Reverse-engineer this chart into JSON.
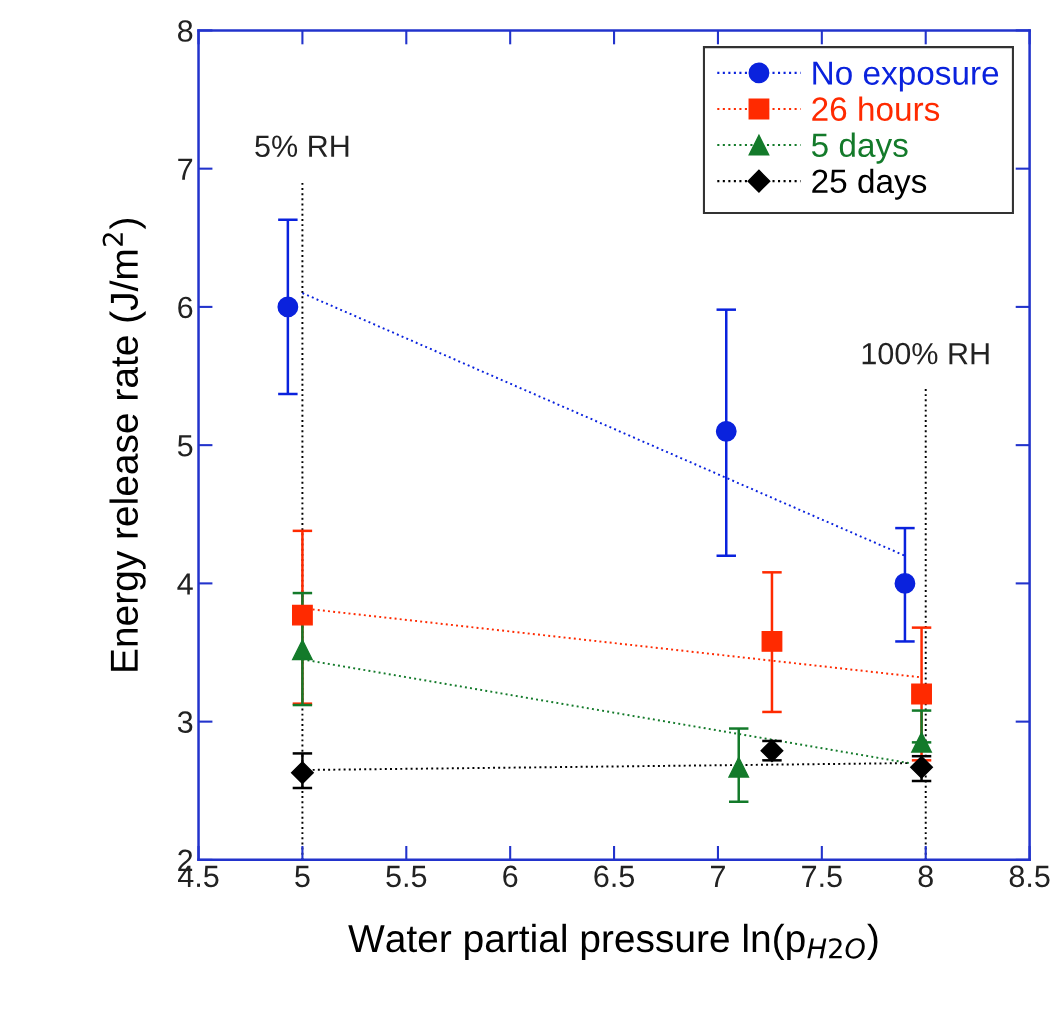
{
  "chart_data": {
    "type": "scatter",
    "xlabel": "Water partial pressure ln(p$_{H2O}$)",
    "ylabel": "Energy release rate (J/m$^{2}$)",
    "xlim": [
      4.5,
      8.5
    ],
    "xticks": [
      4.5,
      5,
      5.5,
      6,
      6.5,
      7,
      7.5,
      8,
      8.5
    ],
    "ylim": [
      2,
      8
    ],
    "yticks": [
      2,
      3,
      4,
      5,
      6,
      7,
      8
    ],
    "grid": false,
    "legend": "top right",
    "series": [
      {
        "name": "No exposure",
        "color": "#0a22dd",
        "marker": "circle",
        "x": [
          4.93,
          7.04,
          7.9
        ],
        "values": [
          6.0,
          5.1,
          4.0
        ],
        "errors": [
          [
            5.37,
            6.63
          ],
          [
            4.2,
            5.98
          ],
          [
            3.58,
            4.4
          ]
        ]
      },
      {
        "name": "26 hours",
        "color": "#ff2a00",
        "marker": "square",
        "x": [
          5.0,
          7.26,
          7.98
        ],
        "values": [
          3.77,
          3.58,
          3.2
        ],
        "errors": [
          [
            3.13,
            4.38
          ],
          [
            3.07,
            4.08
          ],
          [
            2.72,
            3.68
          ]
        ]
      },
      {
        "name": "5 days",
        "color": "#137a2a",
        "marker": "triangle",
        "x": [
          5.0,
          7.1,
          7.98
        ],
        "values": [
          3.52,
          2.67,
          2.85
        ],
        "errors": [
          [
            3.12,
            3.93
          ],
          [
            2.42,
            2.95
          ],
          [
            2.85,
            3.08
          ]
        ]
      },
      {
        "name": "25 days",
        "color": "#000000",
        "marker": "diamond",
        "x": [
          5.0,
          7.26,
          7.98
        ],
        "values": [
          2.63,
          2.79,
          2.67
        ],
        "errors": [
          [
            2.52,
            2.77
          ],
          [
            2.72,
            2.86
          ],
          [
            2.57,
            2.75
          ]
        ]
      },
      {
        "type": "line",
        "color": "#0a22dd",
        "line_style": "dotted",
        "marker": "none",
        "x": [
          5.0,
          7.9
        ],
        "values": [
          6.1,
          4.2
        ]
      },
      {
        "type": "line",
        "color": "#ff2a00",
        "line_style": "dotted",
        "marker": "none",
        "x": [
          5.0,
          7.98
        ],
        "values": [
          3.82,
          3.32
        ]
      },
      {
        "type": "line",
        "color": "#137a2a",
        "line_style": "dotted",
        "marker": "none",
        "x": [
          5.0,
          7.92
        ],
        "values": [
          3.45,
          2.7
        ]
      },
      {
        "type": "line",
        "color": "#000000",
        "line_style": "dotted",
        "marker": "none",
        "x": [
          5.0,
          7.92
        ],
        "values": [
          2.65,
          2.7
        ]
      }
    ],
    "ref_lines": [
      {
        "axis": "x",
        "value": 5,
        "label": "5% RH",
        "color": "#000000",
        "line_style": "dotted"
      },
      {
        "axis": "x",
        "value": 8,
        "label": "100% RH",
        "color": "#000000",
        "line_style": "dotted"
      }
    ]
  }
}
